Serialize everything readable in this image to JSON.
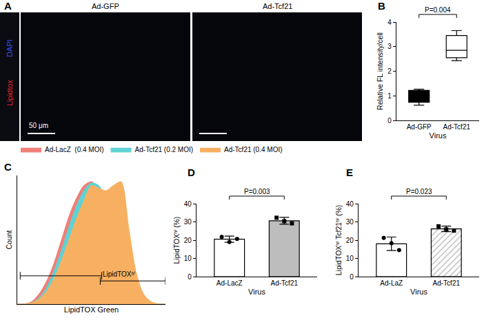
{
  "chart_data": [
    {
      "type": "image",
      "title": "A",
      "panels": [
        "Ad-GFP",
        "Ad-Tcf21"
      ],
      "stain_labels": [
        {
          "text": "Lipidtox",
          "color": "#e8262a"
        },
        {
          "text": "DAPI",
          "color": "#3a4fe0"
        }
      ],
      "scale_bar": "50 μm"
    },
    {
      "type": "box",
      "title": "B",
      "categories": [
        "Ad-GFP",
        "Ad-Tcf21"
      ],
      "boxes": [
        {
          "min": 0.62,
          "q1": 0.74,
          "median": 1.0,
          "q3": 1.22,
          "max": 1.27
        },
        {
          "min": 2.43,
          "q1": 2.55,
          "median": 2.85,
          "q3": 3.45,
          "max": 3.65
        }
      ],
      "colors": [
        "#000000",
        "#ffffff"
      ],
      "x_label": "Virus",
      "y_label": "Relative FL intensity/cell",
      "ylim": [
        0,
        4
      ],
      "yticks": [
        0,
        1,
        2,
        3,
        4
      ],
      "annotations": [
        "P=0.004"
      ]
    },
    {
      "type": "area",
      "title": "C",
      "x": [
        0,
        5,
        10,
        15,
        20,
        25,
        30,
        35,
        40,
        45,
        50,
        55,
        60,
        65,
        70,
        75,
        80,
        85,
        90,
        95,
        100
      ],
      "series": [
        {
          "name": "Ad-LacZ  (0.4 MOI)",
          "color": "#f07f78",
          "values": [
            0,
            0,
            2,
            8,
            18,
            32,
            50,
            68,
            82,
            92,
            95,
            88,
            70,
            48,
            28,
            14,
            6,
            2,
            1,
            0,
            0
          ]
        },
        {
          "name": "Ad-Tcf21 (0.2 MOI)",
          "color": "#5fd3d3",
          "values": [
            0,
            0,
            1,
            5,
            13,
            26,
            42,
            60,
            76,
            88,
            94,
            92,
            80,
            60,
            38,
            20,
            9,
            3,
            1,
            0,
            0
          ]
        },
        {
          "name": "Ad-Tcf21 (0.4 MOI)",
          "color": "#f7b062",
          "values": [
            0,
            0,
            1,
            4,
            10,
            20,
            34,
            50,
            66,
            80,
            92,
            90,
            88,
            92,
            95,
            60,
            25,
            8,
            2,
            0,
            0
          ]
        }
      ],
      "xlim": [
        0,
        100
      ],
      "ylim": [
        0,
        100
      ],
      "tick_labels": false,
      "x_label": "LipidTOX Green",
      "y_label": "Count",
      "gates": [
        {
          "x": [
            2,
            57
          ],
          "y": 22
        },
        {
          "x": [
            56,
            100
          ],
          "y": 18,
          "label": "LipidTOXʰⁱ"
        }
      ],
      "legend": "top left"
    },
    {
      "type": "bar",
      "title": "D",
      "categories": [
        "Ad-LacZ",
        "Ad-Tcf21"
      ],
      "values": [
        20.5,
        30.6
      ],
      "errors": [
        1.7,
        1.9
      ],
      "points": [
        [
          21.8,
          19.0,
          20.7
        ],
        [
          32.3,
          30.4,
          29.2
        ]
      ],
      "colors": [
        "#ffffff",
        "#bdbdbd"
      ],
      "x_label": "Virus",
      "y_label": "LipidTOXʰⁱ (%)",
      "ylim": [
        0,
        40
      ],
      "yticks": [
        0,
        10,
        20,
        30,
        40
      ],
      "annotations": [
        "P=0.003"
      ]
    },
    {
      "type": "bar",
      "title": "E",
      "categories": [
        "Ad-LaZ",
        "Ad-Tcf21"
      ],
      "values": [
        18.0,
        26.2
      ],
      "errors": [
        3.7,
        1.5
      ],
      "points": [
        [
          21.2,
          18.3,
          14.5
        ],
        [
          27.6,
          25.9,
          25.2
        ]
      ],
      "colors": [
        "#ffffff",
        "#bdbdbd"
      ],
      "x_label": "Virus",
      "y_label": "LipidTOXʰⁱ Tcf21ʰⁱ (%)",
      "ylim": [
        0,
        40
      ],
      "yticks": [
        0,
        10,
        20,
        30,
        40
      ],
      "annotations": [
        "P=0.023"
      ]
    }
  ]
}
